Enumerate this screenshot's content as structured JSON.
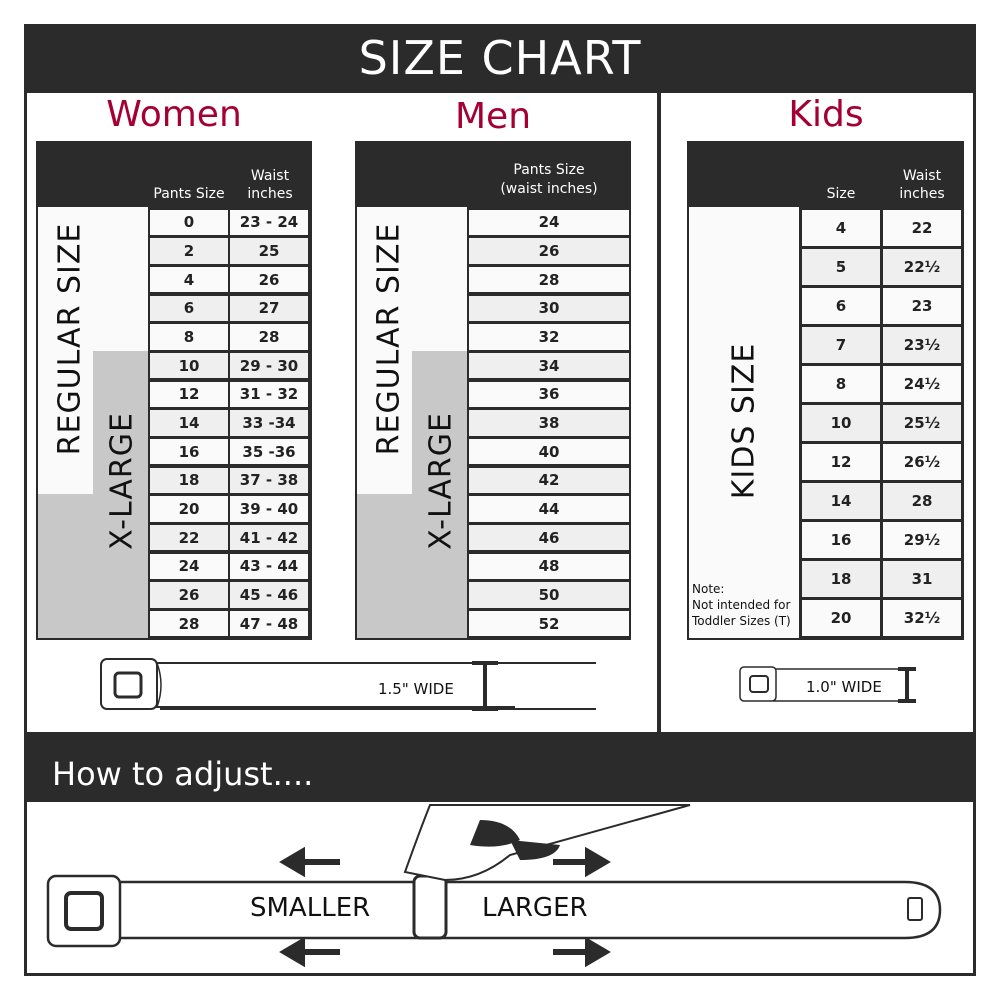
{
  "header": {
    "title": "SIZE CHART"
  },
  "women": {
    "title": "Women",
    "col1": "Pants Size",
    "col2": "Waist inches",
    "regular_label": "REGULAR SIZE",
    "xlarge_label": "X-LARGE",
    "rows": [
      [
        "0",
        "23 - 24"
      ],
      [
        "2",
        "25"
      ],
      [
        "4",
        "26"
      ],
      [
        "6",
        "27"
      ],
      [
        "8",
        "28"
      ],
      [
        "10",
        "29 - 30"
      ],
      [
        "12",
        "31 - 32"
      ],
      [
        "14",
        "33 -34"
      ],
      [
        "16",
        "35 -36"
      ],
      [
        "18",
        "37 - 38"
      ],
      [
        "20",
        "39 - 40"
      ],
      [
        "22",
        "41 - 42"
      ],
      [
        "24",
        "43 - 44"
      ],
      [
        "26",
        "45 - 46"
      ],
      [
        "28",
        "47 - 48"
      ]
    ],
    "belt_label": "1.5\" WIDE"
  },
  "men": {
    "title": "Men",
    "col1": "Pants Size",
    "col1_sub": "(waist inches)",
    "regular_label": "REGULAR SIZE",
    "xlarge_label": "X-LARGE",
    "rows": [
      "24",
      "26",
      "28",
      "30",
      "32",
      "34",
      "36",
      "38",
      "40",
      "42",
      "44",
      "46",
      "48",
      "50",
      "52"
    ]
  },
  "kids": {
    "title": "Kids",
    "col1": "Size",
    "col2": "Waist inches",
    "size_label": "KIDS SIZE",
    "note_title": "Note:",
    "note_line1": "Not intended for",
    "note_line2": "Toddler Sizes (T)",
    "rows": [
      [
        "4",
        "22"
      ],
      [
        "5",
        "22½"
      ],
      [
        "6",
        "23"
      ],
      [
        "7",
        "23½"
      ],
      [
        "8",
        "24½"
      ],
      [
        "10",
        "25½"
      ],
      [
        "12",
        "26½"
      ],
      [
        "14",
        "28"
      ],
      [
        "16",
        "29½"
      ],
      [
        "18",
        "31"
      ],
      [
        "20",
        "32½"
      ]
    ],
    "belt_label": "1.0\" WIDE"
  },
  "adjust": {
    "title": "How to adjust....",
    "smaller": "SMALLER",
    "larger": "LARGER"
  },
  "colors": {
    "dark": "#2b2b2b",
    "accent": "#a50034",
    "xlarge_gray": "#c8c8c8",
    "row_alt": "#efefef"
  }
}
